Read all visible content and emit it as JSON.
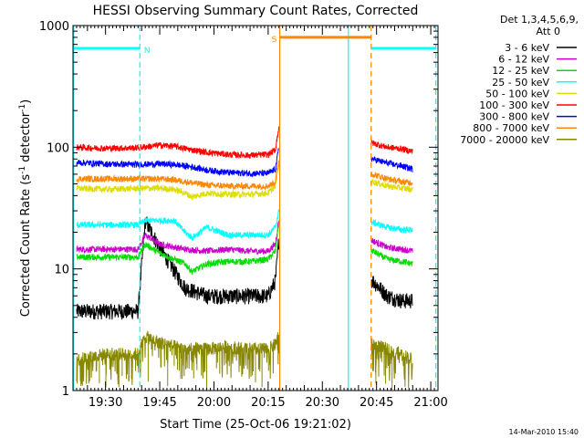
{
  "chart_data": {
    "type": "line",
    "title": "HESSI Observing Summary Count Rates, Corrected",
    "xlabel": "Start Time (25-Oct-06 19:21:02)",
    "ylabel": "Corrected Count Rate (s⁻¹ detector⁻¹)",
    "ylabel_base": "Corrected Count Rate (s",
    "ylabel_mid": " detector",
    "ylabel_end": ")",
    "ylabel_exp": "-1",
    "y_scale": "log",
    "ylim": [
      1,
      1000
    ],
    "xlim_min": [
      1161.0,
      1262.0
    ],
    "x_ticks": [
      {
        "t": 1170,
        "label": "19:30"
      },
      {
        "t": 1185,
        "label": "19:45"
      },
      {
        "t": 1200,
        "label": "20:00"
      },
      {
        "t": 1215,
        "label": "20:15"
      },
      {
        "t": 1230,
        "label": "20:30"
      },
      {
        "t": 1245,
        "label": "20:45"
      },
      {
        "t": 1260,
        "label": "21:00"
      }
    ],
    "y_ticks": [
      {
        "v": 1,
        "label": "1"
      },
      {
        "v": 10,
        "label": "10"
      },
      {
        "v": 100,
        "label": "100"
      },
      {
        "v": 1000,
        "label": "1000"
      }
    ],
    "legend_header": [
      "Det 1,3,4,5,6,9,",
      "Att 0"
    ],
    "legend_position": "right",
    "data_gap": [
      1218.0,
      1243.5
    ],
    "series": [
      {
        "name": "3 - 6 keV",
        "color": "#000000",
        "level": 4.5,
        "peak": 25,
        "post": 5.8,
        "x": [
          1162,
          1170,
          1179,
          1181,
          1185,
          1192,
          1198,
          1204,
          1210,
          1215,
          1217,
          1218,
          1244,
          1248,
          1252,
          1255
        ],
        "y": [
          4.5,
          4.5,
          4.5,
          25,
          15,
          7,
          6,
          6,
          6,
          6,
          8,
          18,
          8,
          6,
          5.5,
          5.5
        ]
      },
      {
        "name": "6 - 12 keV",
        "color": "#cc00cc",
        "x": [
          1162,
          1170,
          1179,
          1181,
          1185,
          1192,
          1198,
          1204,
          1210,
          1215,
          1217,
          1218,
          1244,
          1248,
          1252,
          1255
        ],
        "y": [
          14.5,
          14.5,
          14.5,
          19,
          16,
          14.5,
          14,
          14.5,
          14,
          14,
          16,
          26,
          17,
          15,
          14.5,
          14
        ]
      },
      {
        "name": "12 - 25 keV",
        "color": "#00dd00",
        "x": [
          1162,
          1170,
          1179,
          1181,
          1185,
          1192,
          1194,
          1198,
          1204,
          1210,
          1215,
          1217,
          1218,
          1244,
          1248,
          1252,
          1255
        ],
        "y": [
          12.5,
          12.5,
          12.5,
          16,
          13.5,
          11,
          9.5,
          11,
          11.5,
          11.5,
          12,
          14,
          25,
          14,
          12,
          11.5,
          11
        ]
      },
      {
        "name": "25 - 50 keV",
        "color": "#00ffff",
        "x": [
          1162,
          1170,
          1179,
          1181,
          1185,
          1189,
          1192,
          1194,
          1198,
          1204,
          1210,
          1215,
          1217,
          1218,
          1244,
          1248,
          1252,
          1255
        ],
        "y": [
          23,
          23,
          23,
          25,
          25,
          25,
          20,
          18,
          22,
          19,
          19,
          19,
          22,
          30,
          24,
          22,
          21,
          21
        ]
      },
      {
        "name": "50 - 100 keV",
        "color": "#dddd00",
        "x": [
          1162,
          1170,
          1179,
          1185,
          1189,
          1192,
          1194,
          1198,
          1204,
          1210,
          1215,
          1217,
          1218,
          1244,
          1248,
          1252,
          1255
        ],
        "y": [
          46,
          45,
          46,
          46,
          45,
          42,
          39,
          42,
          41,
          41,
          42,
          48,
          75,
          52,
          48,
          46,
          45
        ]
      },
      {
        "name": "100 - 300 keV",
        "color": "#ff0000",
        "x": [
          1162,
          1170,
          1179,
          1185,
          1189,
          1194,
          1198,
          1204,
          1210,
          1215,
          1217,
          1218,
          1244,
          1248,
          1252,
          1255
        ],
        "y": [
          100,
          98,
          99,
          104,
          102,
          95,
          91,
          87,
          86,
          87,
          95,
          150,
          108,
          100,
          97,
          92
        ]
      },
      {
        "name": "300 - 800 keV",
        "color": "#0000ff",
        "x": [
          1162,
          1170,
          1179,
          1185,
          1189,
          1194,
          1198,
          1204,
          1210,
          1215,
          1217,
          1218,
          1244,
          1248,
          1252,
          1255
        ],
        "y": [
          75,
          73,
          72,
          73,
          72,
          69,
          65,
          62,
          61,
          61,
          66,
          100,
          80,
          74,
          70,
          66
        ]
      },
      {
        "name": "800 - 7000 keV",
        "color": "#ff8800",
        "x": [
          1162,
          1170,
          1179,
          1185,
          1189,
          1194,
          1198,
          1204,
          1210,
          1215,
          1217,
          1218,
          1244,
          1248,
          1252,
          1255
        ],
        "y": [
          55,
          55,
          55,
          55,
          54,
          51,
          49,
          48,
          48,
          48,
          52,
          80,
          60,
          55,
          52,
          51
        ]
      },
      {
        "name": "7000 - 20000 keV",
        "color": "#888800",
        "x": [
          1162,
          1170,
          1179,
          1181,
          1185,
          1192,
          1198,
          1204,
          1210,
          1215,
          1217,
          1218,
          1244,
          1248,
          1252,
          1255
        ],
        "y": [
          1.8,
          2,
          2,
          2.8,
          2.5,
          2.2,
          2.2,
          2.3,
          2.2,
          2.2,
          2.4,
          3,
          2.4,
          2.2,
          2,
          1.8
        ]
      }
    ],
    "annotations": [
      {
        "label": "N",
        "color": "#00ffff",
        "type": "night_segments",
        "segments": [
          [
            1161.2,
            1179.5
          ],
          [
            1243.5,
            1261.4
          ]
        ]
      },
      {
        "label": "S",
        "color": "#ff8800",
        "type": "saa_segment",
        "segments": [
          [
            1218.2,
            1243.5
          ]
        ]
      }
    ],
    "vertical_lines": [
      {
        "t": 1179.5,
        "color": "#00ffff",
        "style": "dashed"
      },
      {
        "t": 1218.2,
        "color": "#ff8800",
        "style": "solid"
      },
      {
        "t": 1237.2,
        "color": "#00ffff",
        "style": "solid"
      },
      {
        "t": 1243.5,
        "color": "#ff8800",
        "style": "dashed"
      },
      {
        "t": 1261.4,
        "color": "#00ffff",
        "style": "dashed"
      },
      {
        "t": 1161.2,
        "color": "#00ffff",
        "style": "solid"
      }
    ]
  },
  "footer": {
    "timestamp": "14-Mar-2010 15:40"
  }
}
